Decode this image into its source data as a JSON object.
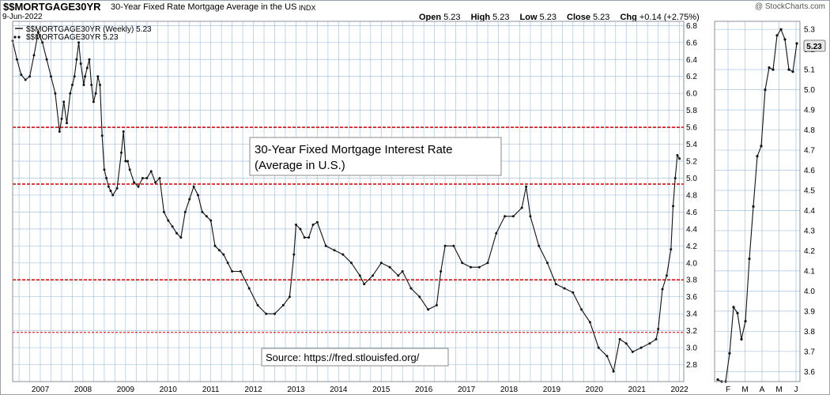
{
  "header": {
    "symbol": "$$MORTGAGE30YR",
    "description": "30-Year Fixed Rate Mortgage Average in the US",
    "exchange": "INDX",
    "date": "9-Jun-2022",
    "copyright": "@ StockCharts.com",
    "open_label": "Open",
    "open_value": "5.23",
    "high_label": "High",
    "high_value": "5.23",
    "low_label": "Low",
    "low_value": "5.23",
    "close_label": "Close",
    "close_value": "5.23",
    "chg_label": "Chg",
    "chg_value": "+0.14 (+2.75%)"
  },
  "legend": {
    "line1": "$$MORTGAGE30YR (Weekly) 5.23",
    "line2": "$$MORTGAGE30YR 5.23"
  },
  "annotations": {
    "title_line1": "30-Year Fixed Mortgage Interest Rate",
    "title_line2": "(Average in U.S.)",
    "source": "Source: https://fred.stlouisfed.org/"
  },
  "colors": {
    "line": "#111111",
    "grid": "#a9c4e0",
    "hline": "#cc0000",
    "frame": "#8a9098",
    "badge": "#e8e8e8"
  },
  "chart_data": [
    {
      "type": "line",
      "title": "",
      "ylim": [
        2.6,
        6.85
      ],
      "xlim": [
        2006.85,
        2022.6
      ],
      "x_ticks": [
        2007,
        2008,
        2009,
        2010,
        2011,
        2012,
        2013,
        2014,
        2015,
        2016,
        2017,
        2018,
        2019,
        2020,
        2021,
        2022
      ],
      "x_tick_labels": [
        "2007",
        "2008",
        "2009",
        "2010",
        "2011",
        "2012",
        "2013",
        "2014",
        "2015",
        "2016",
        "2017",
        "2018",
        "2019",
        "2020",
        "2021",
        "2022"
      ],
      "y_ticks": [
        2.8,
        3.0,
        3.2,
        3.4,
        3.6,
        3.8,
        4.0,
        4.2,
        4.4,
        4.6,
        4.8,
        5.0,
        5.2,
        5.4,
        5.6,
        5.8,
        6.0,
        6.2,
        6.4,
        6.6,
        6.8
      ],
      "y_tick_labels": [
        "2.8",
        "3.0",
        "3.2",
        "3.4",
        "3.6",
        "3.8",
        "4.0",
        "4.2",
        "4.4",
        "4.6",
        "4.8",
        "5.0",
        "5.2",
        "5.4",
        "5.6",
        "5.8",
        "6.0",
        "6.2",
        "6.4",
        "6.6",
        "6.8"
      ],
      "grid": true,
      "horizontal_lines": [
        5.6,
        4.93,
        3.8,
        3.18
      ],
      "last_value": "5.23",
      "series": [
        {
          "name": "$$MORTGAGE30YR (Weekly)",
          "x": [
            2006.85,
            2006.95,
            2007.05,
            2007.15,
            2007.25,
            2007.35,
            2007.45,
            2007.55,
            2007.65,
            2007.75,
            2007.85,
            2007.95,
            2008.0,
            2008.05,
            2008.12,
            2008.2,
            2008.25,
            2008.3,
            2008.35,
            2008.4,
            2008.45,
            2008.52,
            2008.55,
            2008.6,
            2008.65,
            2008.7,
            2008.75,
            2008.8,
            2008.85,
            2008.9,
            2008.95,
            2009.0,
            2009.05,
            2009.1,
            2009.15,
            2009.2,
            2009.3,
            2009.4,
            2009.45,
            2009.5,
            2009.55,
            2009.6,
            2009.7,
            2009.8,
            2009.9,
            2010.0,
            2010.1,
            2010.2,
            2010.3,
            2010.4,
            2010.5,
            2010.6,
            2010.7,
            2010.8,
            2010.9,
            2011.0,
            2011.1,
            2011.2,
            2011.3,
            2011.4,
            2011.5,
            2011.6,
            2011.7,
            2011.8,
            2011.9,
            2012.0,
            2012.2,
            2012.4,
            2012.6,
            2012.8,
            2013.0,
            2013.2,
            2013.35,
            2013.45,
            2013.5,
            2013.6,
            2013.7,
            2013.8,
            2013.9,
            2014.0,
            2014.2,
            2014.4,
            2014.6,
            2014.8,
            2015.0,
            2015.1,
            2015.3,
            2015.5,
            2015.7,
            2015.9,
            2016.0,
            2016.2,
            2016.4,
            2016.6,
            2016.8,
            2016.9,
            2017.0,
            2017.2,
            2017.4,
            2017.6,
            2017.8,
            2018.0,
            2018.2,
            2018.4,
            2018.6,
            2018.8,
            2018.9,
            2019.0,
            2019.2,
            2019.4,
            2019.6,
            2019.8,
            2020.0,
            2020.2,
            2020.4,
            2020.6,
            2020.8,
            2020.95,
            2021.1,
            2021.25,
            2021.4,
            2021.6,
            2021.8,
            2021.95,
            2022.0,
            2022.1,
            2022.2,
            2022.3,
            2022.35,
            2022.4,
            2022.45,
            2022.5
          ],
          "y": [
            6.62,
            6.4,
            6.22,
            6.16,
            6.2,
            6.45,
            6.72,
            6.6,
            6.4,
            6.2,
            6.0,
            5.55,
            5.7,
            5.9,
            5.65,
            6.0,
            6.1,
            6.2,
            6.4,
            6.6,
            6.35,
            6.1,
            6.2,
            6.3,
            6.4,
            6.1,
            5.9,
            6.0,
            6.2,
            6.1,
            5.5,
            5.1,
            5.0,
            4.9,
            4.85,
            4.8,
            4.88,
            5.3,
            5.55,
            5.2,
            5.2,
            5.1,
            4.95,
            4.9,
            5.0,
            5.0,
            5.08,
            4.95,
            5.0,
            4.6,
            4.5,
            4.43,
            4.35,
            4.3,
            4.6,
            4.75,
            4.9,
            4.8,
            4.6,
            4.55,
            4.5,
            4.2,
            4.15,
            4.1,
            4.0,
            3.9,
            3.9,
            3.7,
            3.5,
            3.4,
            3.4,
            3.5,
            3.6,
            4.1,
            4.45,
            4.4,
            4.3,
            4.3,
            4.45,
            4.48,
            4.2,
            4.15,
            4.1,
            4.0,
            3.85,
            3.75,
            3.85,
            4.0,
            3.95,
            3.85,
            3.9,
            3.7,
            3.6,
            3.45,
            3.5,
            3.9,
            4.2,
            4.2,
            4.0,
            3.95,
            3.95,
            4.0,
            4.35,
            4.55,
            4.55,
            4.65,
            4.9,
            4.55,
            4.2,
            4.0,
            3.75,
            3.7,
            3.65,
            3.45,
            3.3,
            3.0,
            2.9,
            2.72,
            3.1,
            3.05,
            2.95,
            3.0,
            3.05,
            3.1,
            3.22,
            3.69,
            3.85,
            4.16,
            4.67,
            5.0,
            5.27,
            5.23
          ]
        }
      ]
    },
    {
      "type": "line",
      "title": "",
      "ylim": [
        3.55,
        5.34
      ],
      "x_tick_labels": [
        "F",
        "M",
        "A",
        "M",
        "J"
      ],
      "y_ticks": [
        3.6,
        3.7,
        3.8,
        3.9,
        4.0,
        4.1,
        4.2,
        4.3,
        4.4,
        4.5,
        4.6,
        4.7,
        4.8,
        4.9,
        5.0,
        5.1,
        5.2,
        5.3
      ],
      "y_tick_labels": [
        "3.6",
        "3.7",
        "3.8",
        "3.9",
        "4.0",
        "4.1",
        "4.2",
        "4.3",
        "4.4",
        "4.5",
        "4.6",
        "4.7",
        "4.8",
        "4.9",
        "5.0",
        "5.1",
        "5.2",
        "5.3"
      ],
      "grid": true,
      "last_value": "5.23",
      "series": [
        {
          "name": "$$MORTGAGE30YR",
          "x": [
            0,
            1,
            2,
            3,
            4,
            5,
            6,
            7,
            8,
            9,
            10,
            11,
            12,
            13,
            14,
            15,
            16,
            17,
            18,
            19,
            20
          ],
          "y": [
            3.56,
            3.55,
            3.55,
            3.69,
            3.92,
            3.89,
            3.76,
            3.85,
            4.16,
            4.42,
            4.67,
            4.72,
            5.0,
            5.11,
            5.1,
            5.27,
            5.3,
            5.25,
            5.1,
            5.09,
            5.23
          ]
        }
      ]
    }
  ]
}
